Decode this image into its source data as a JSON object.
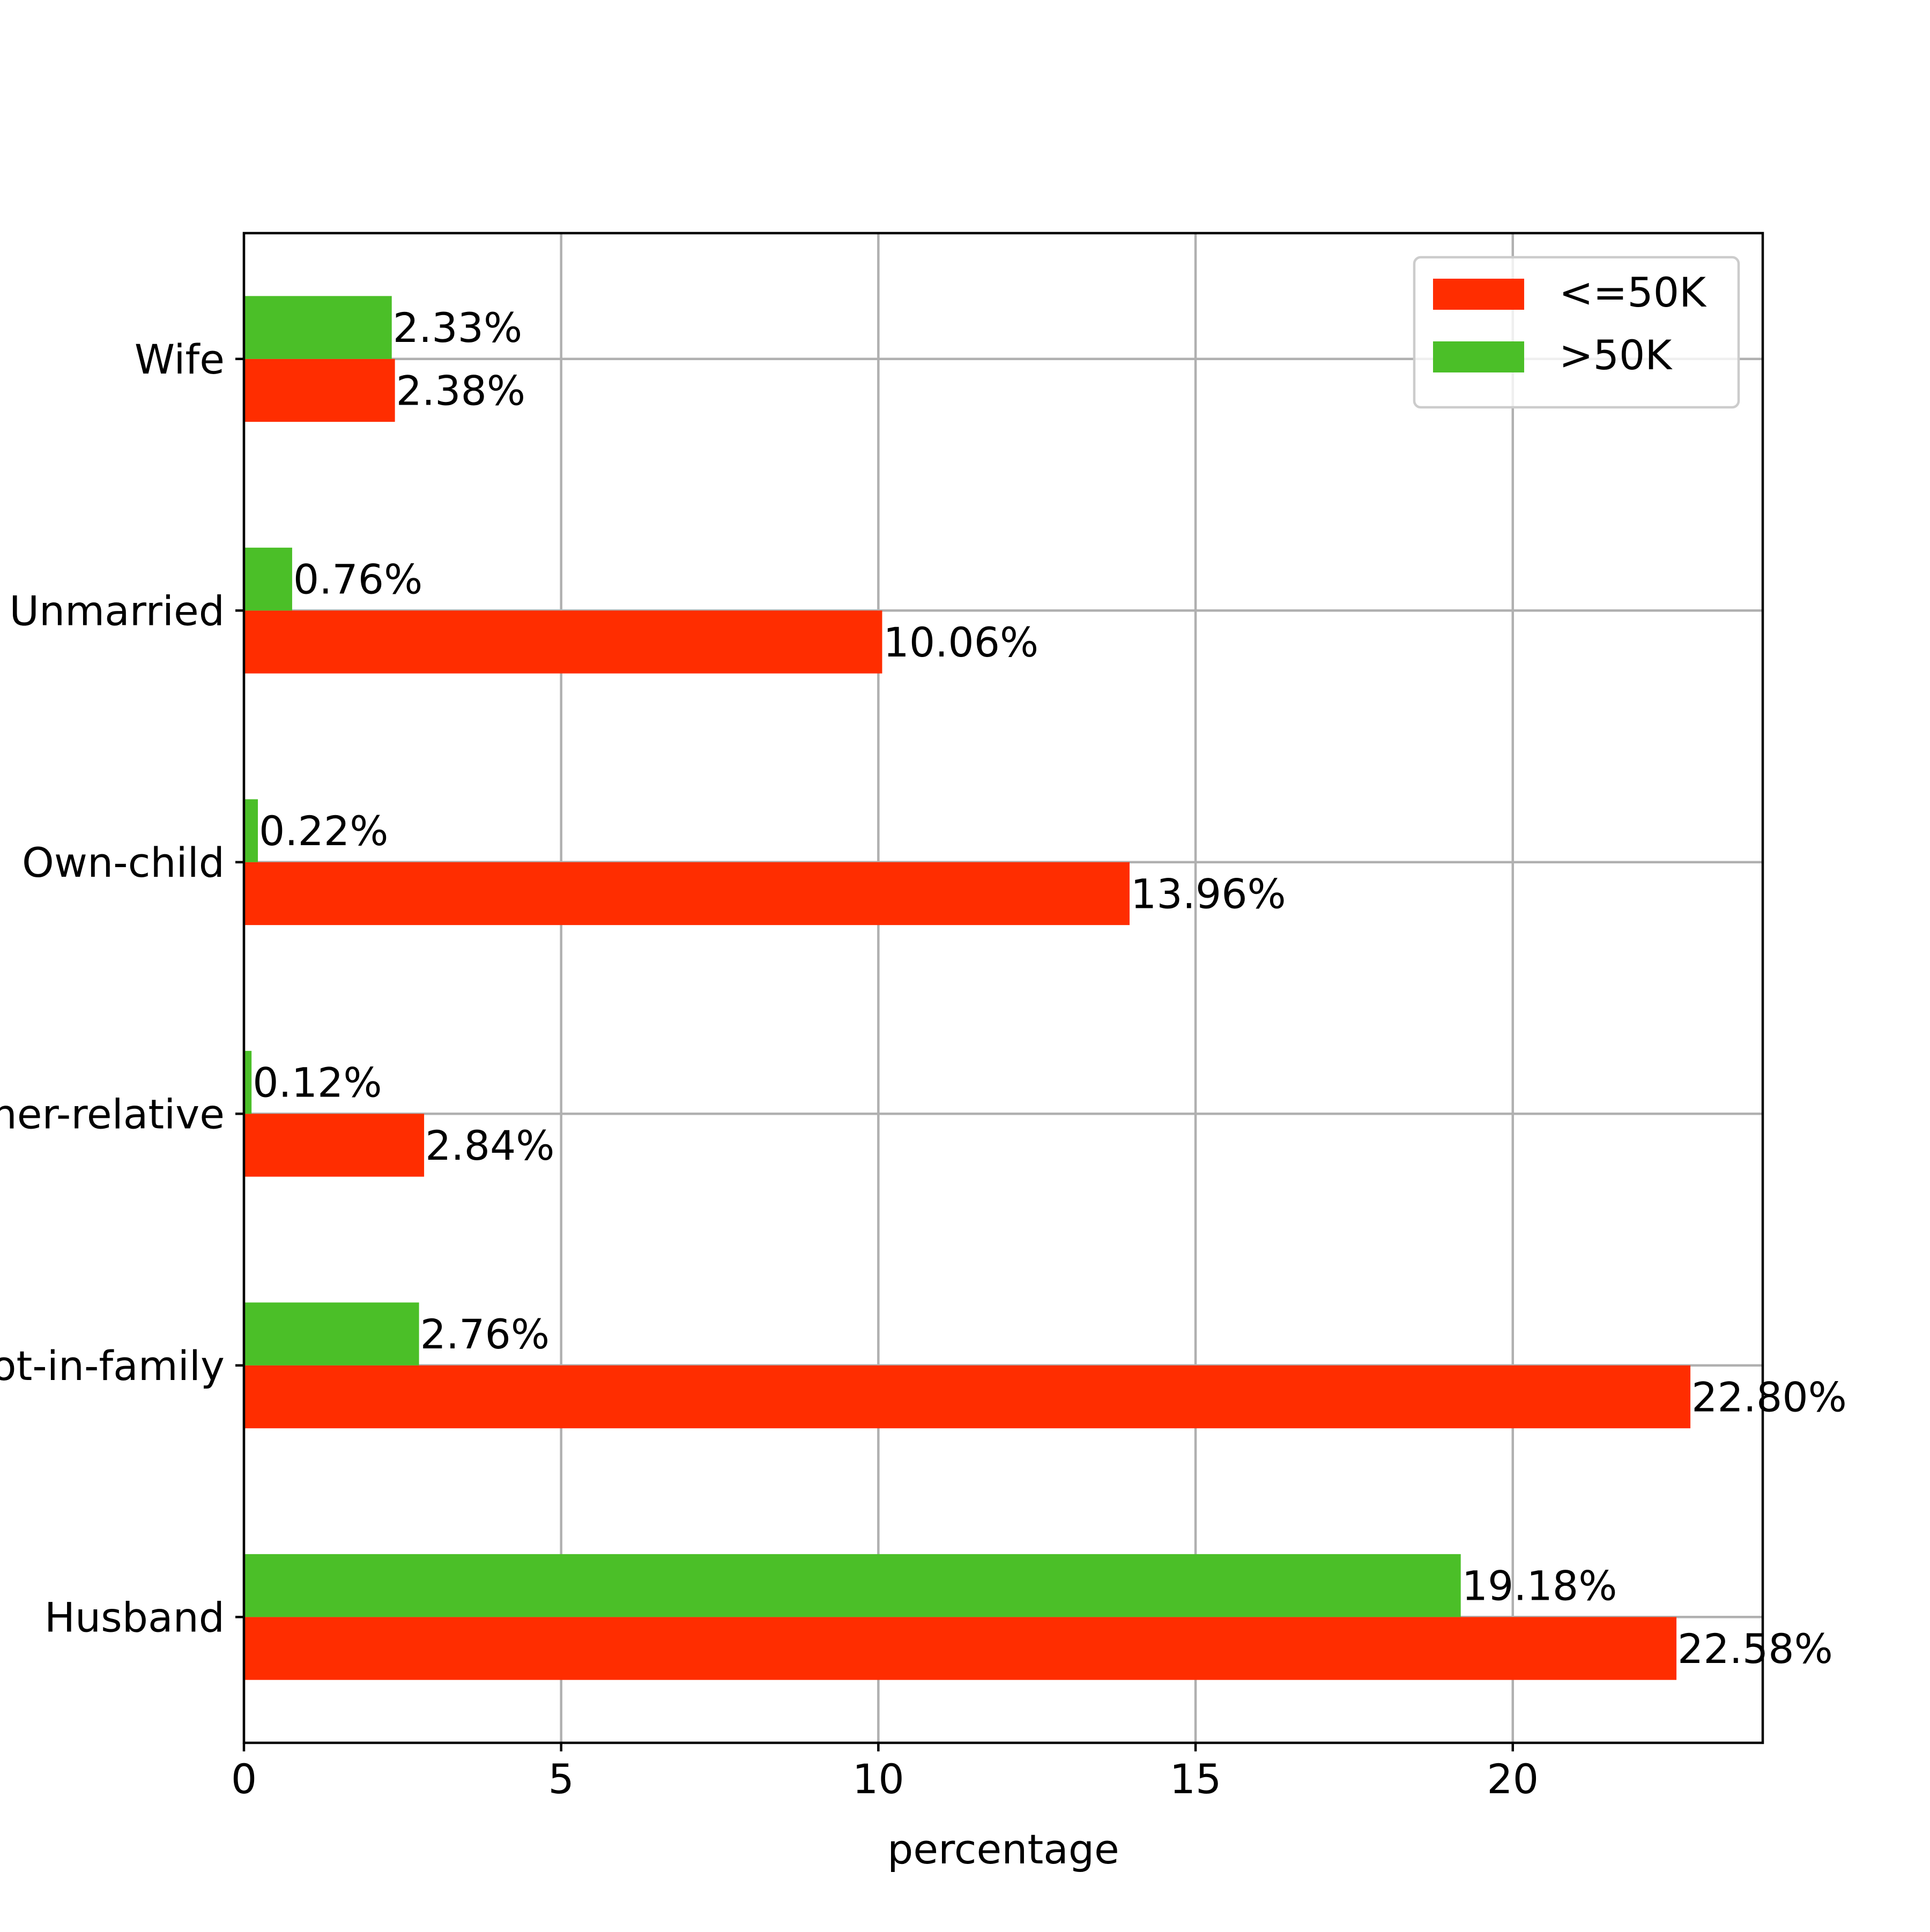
{
  "chart_data": {
    "type": "bar",
    "orientation": "horizontal",
    "categories": [
      "Husband",
      "Not-in-family",
      "Other-relative",
      "Own-child",
      "Unmarried",
      "Wife"
    ],
    "series": [
      {
        "name": "<=50K",
        "color": "#ff2d00",
        "values": [
          22.58,
          22.8,
          2.84,
          13.96,
          10.06,
          2.38
        ],
        "labels": [
          "22.58%",
          "22.80%",
          "2.84%",
          "13.96%",
          "10.06%",
          "2.38%"
        ]
      },
      {
        "name": ">50K",
        "color": "#4bbf28",
        "values": [
          19.18,
          2.76,
          0.12,
          0.22,
          0.76,
          2.33
        ],
        "labels": [
          "19.18%",
          "2.76%",
          "0.12%",
          "0.22%",
          "0.76%",
          "2.33%"
        ]
      }
    ],
    "title": "",
    "xlabel": "percentage",
    "ylabel": "",
    "xlim": [
      0,
      23.94
    ],
    "xticks": [
      "0",
      "5",
      "10",
      "15",
      "20"
    ],
    "grid": true,
    "legend_position": "top-right"
  }
}
